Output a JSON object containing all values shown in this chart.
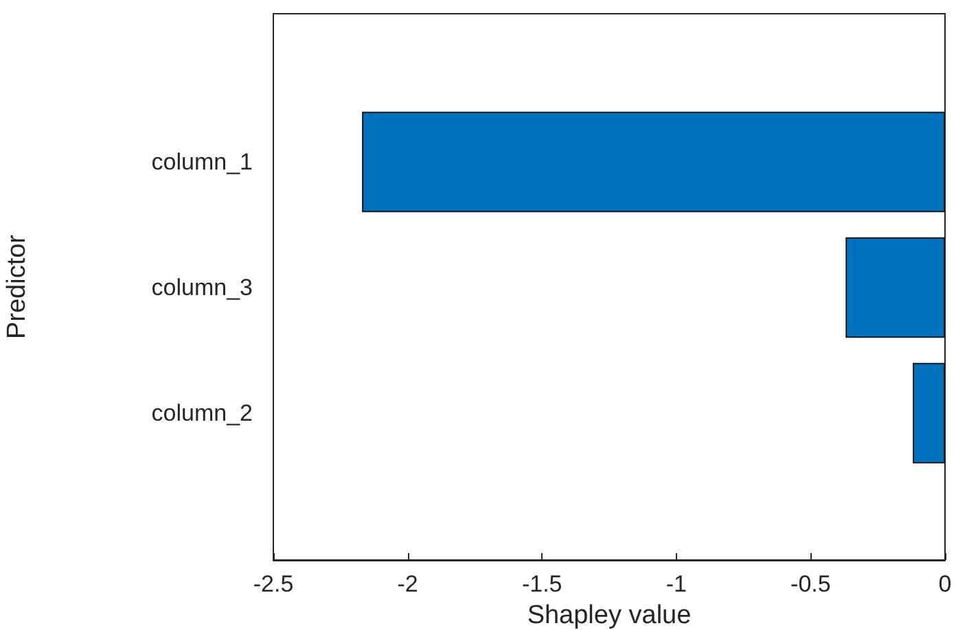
{
  "chart_data": {
    "type": "bar",
    "orientation": "horizontal",
    "xlabel": "Shapley value",
    "ylabel": "Predictor",
    "categories": [
      "column_1",
      "column_3",
      "column_2"
    ],
    "values": [
      -2.17,
      -0.37,
      -0.12
    ],
    "color": "#0072bd",
    "xlim": [
      -2.5,
      0
    ],
    "xticks": [
      -2.5,
      -2,
      -1.5,
      -1,
      -0.5,
      0
    ],
    "grid": false
  }
}
